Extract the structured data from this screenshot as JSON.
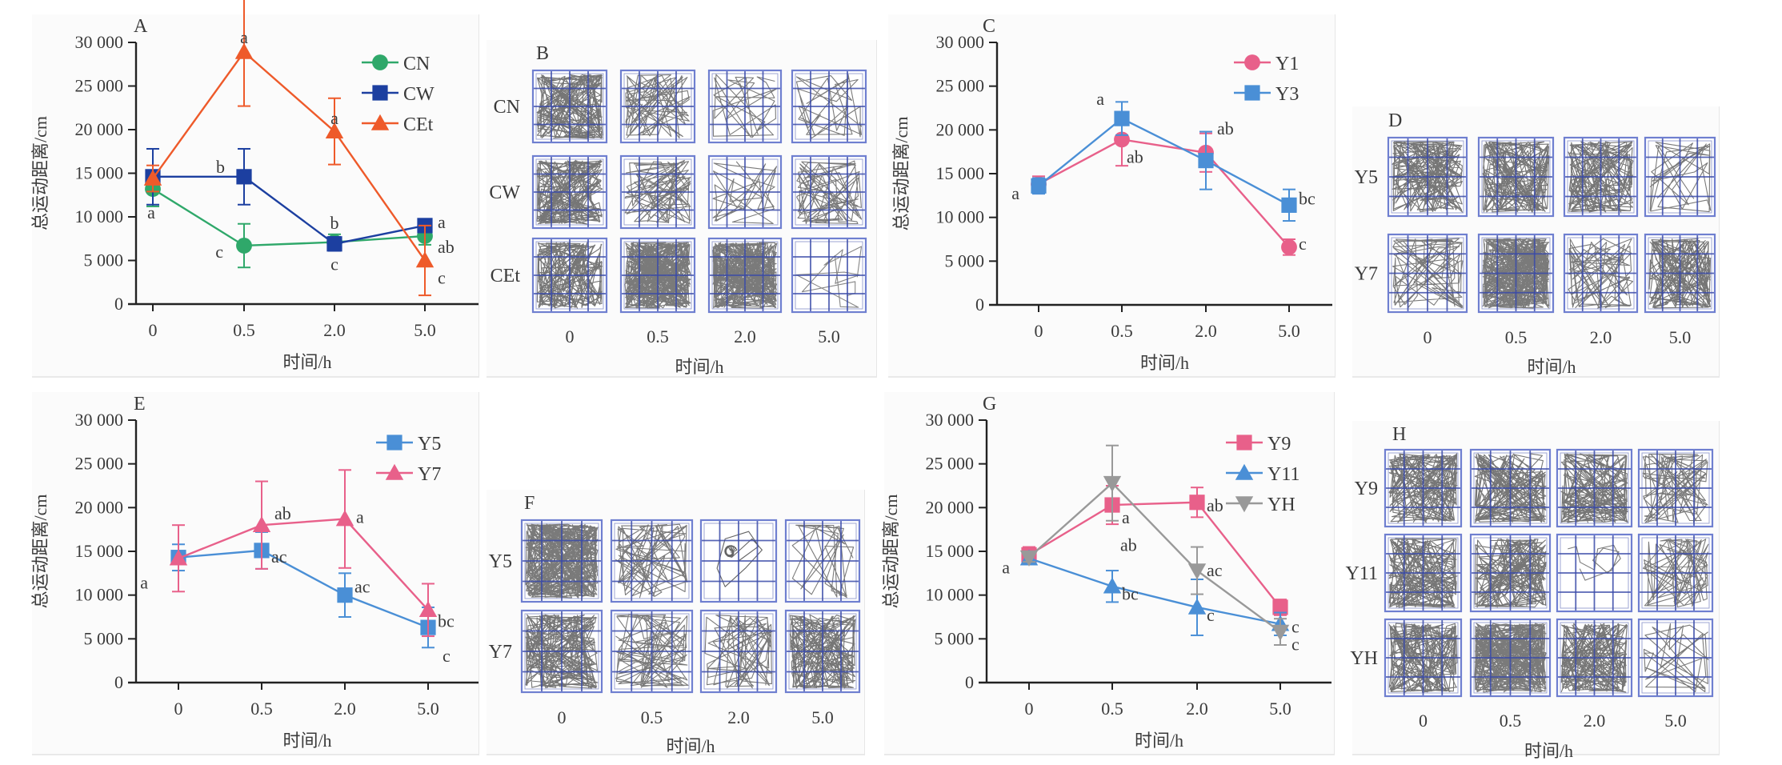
{
  "figure": {
    "ylabel": "总运动距离/cm",
    "xlabel": "时间/h"
  },
  "chart_data": [
    {
      "id": "A",
      "type": "line",
      "panel_label": "A",
      "title": "",
      "xlabel": "时间/h",
      "ylabel": "总运动距离/cm",
      "categories": [
        "0",
        "0.5",
        "2.0",
        "5.0"
      ],
      "yticks": [
        "0",
        "5 000",
        "10 000",
        "15 000",
        "20 000",
        "25 000",
        "30 000"
      ],
      "ylim": [
        0,
        30000
      ],
      "grid": false,
      "legend": "top-right",
      "series": [
        {
          "name": "CN",
          "color": "#2fa86a",
          "marker": "circle",
          "values": [
            13200,
            6700,
            7100,
            7800
          ],
          "errors": [
            2000,
            2500,
            900,
            1000
          ],
          "labels": [
            "a",
            "c",
            "c",
            "ab"
          ]
        },
        {
          "name": "CW",
          "color": "#1c3fa0",
          "marker": "square",
          "values": [
            14600,
            14600,
            6900,
            9000
          ],
          "errors": [
            3200,
            3200,
            800,
            600
          ],
          "labels": [
            "",
            "b",
            "b",
            "a"
          ]
        },
        {
          "name": "CEt",
          "color": "#ee5a2a",
          "marker": "triangle",
          "values": [
            14400,
            28900,
            19800,
            5000
          ],
          "errors": [
            1500,
            6200,
            3800,
            4000
          ],
          "labels": [
            "",
            "a",
            "a",
            "c"
          ]
        }
      ]
    },
    {
      "id": "C",
      "type": "line",
      "panel_label": "C",
      "title": "",
      "xlabel": "时间/h",
      "ylabel": "总运动距离/cm",
      "categories": [
        "0",
        "0.5",
        "2.0",
        "5.0"
      ],
      "yticks": [
        "0",
        "5 000",
        "10 000",
        "15 000",
        "20 000",
        "25 000",
        "30 000"
      ],
      "ylim": [
        0,
        30000
      ],
      "grid": false,
      "legend": "top-right",
      "series": [
        {
          "name": "Y1",
          "color": "#e8608a",
          "marker": "circle",
          "values": [
            13800,
            18900,
            17400,
            6600
          ],
          "errors": [
            900,
            3000,
            2200,
            900
          ],
          "labels": [
            "a",
            "ab",
            "ab",
            "c"
          ]
        },
        {
          "name": "Y3",
          "color": "#4a8fd6",
          "marker": "square",
          "values": [
            13600,
            21300,
            16500,
            11400
          ],
          "errors": [
            900,
            1900,
            3300,
            1800
          ],
          "labels": [
            "",
            "a",
            "",
            "bc"
          ]
        }
      ]
    },
    {
      "id": "E",
      "type": "line",
      "panel_label": "E",
      "title": "",
      "xlabel": "时间/h",
      "ylabel": "总运动距离/cm",
      "categories": [
        "0",
        "0.5",
        "2.0",
        "5.0"
      ],
      "yticks": [
        "0",
        "5 000",
        "10 000",
        "15 000",
        "20 000",
        "25 000",
        "30 000"
      ],
      "ylim": [
        0,
        30000
      ],
      "grid": false,
      "legend": "top-right",
      "series": [
        {
          "name": "Y5",
          "color": "#4a8fd6",
          "marker": "square",
          "values": [
            14300,
            15100,
            10000,
            6300
          ],
          "errors": [
            1500,
            2100,
            2500,
            2300
          ],
          "labels": [
            "a",
            "ac",
            "ac",
            "c"
          ]
        },
        {
          "name": "Y7",
          "color": "#e8608a",
          "marker": "triangle",
          "values": [
            14200,
            18000,
            18700,
            8300
          ],
          "errors": [
            3800,
            5000,
            5600,
            3000
          ],
          "labels": [
            "",
            "ab",
            "a",
            "bc"
          ]
        }
      ]
    },
    {
      "id": "G",
      "type": "line",
      "panel_label": "G",
      "title": "",
      "xlabel": "时间/h",
      "ylabel": "总运动距离/cm",
      "categories": [
        "0",
        "0.5",
        "2.0",
        "5.0"
      ],
      "yticks": [
        "0",
        "5 000",
        "10 000",
        "15 000",
        "20 000",
        "25 000",
        "30 000"
      ],
      "ylim": [
        0,
        30000
      ],
      "grid": false,
      "legend": "top-right",
      "series": [
        {
          "name": "Y9",
          "color": "#e8608a",
          "marker": "square",
          "values": [
            14600,
            20300,
            20600,
            8600
          ],
          "errors": [
            900,
            2200,
            1700,
            900
          ],
          "labels": [
            "a",
            "a",
            "ab",
            ""
          ]
        },
        {
          "name": "Y11",
          "color": "#4a8fd6",
          "marker": "triangle",
          "values": [
            14200,
            11000,
            8600,
            6700
          ],
          "errors": [
            500,
            1800,
            3200,
            1300
          ],
          "labels": [
            "",
            "bc",
            "c",
            "c"
          ]
        },
        {
          "name": "YH",
          "color": "#999999",
          "marker": "triangle-down",
          "values": [
            14300,
            22800,
            12800,
            5800
          ],
          "errors": [
            500,
            4300,
            2700,
            1500
          ],
          "labels": [
            "",
            "ab",
            "ac",
            "c"
          ]
        }
      ]
    }
  ],
  "tracking_panels": [
    {
      "id": "B",
      "panel_label": "B",
      "xlabel": "时间/h",
      "columns": [
        "0",
        "0.5",
        "2.0",
        "5.0"
      ],
      "rows": [
        {
          "label": "CN",
          "activity": [
            "high",
            "medium",
            "low",
            "low"
          ]
        },
        {
          "label": "CW",
          "activity": [
            "high",
            "medium",
            "low",
            "medium"
          ]
        },
        {
          "label": "CEt",
          "activity": [
            "high",
            "very-high",
            "very-high",
            "very-low"
          ]
        }
      ]
    },
    {
      "id": "D",
      "panel_label": "D",
      "xlabel": "时间/h",
      "columns": [
        "0",
        "0.5",
        "2.0",
        "5.0"
      ],
      "rows": [
        {
          "label": "Y5",
          "activity": [
            "high",
            "high",
            "high",
            "low"
          ]
        },
        {
          "label": "Y7",
          "activity": [
            "medium",
            "very-high",
            "medium",
            "high"
          ]
        }
      ]
    },
    {
      "id": "F",
      "panel_label": "F",
      "xlabel": "时间/h",
      "columns": [
        "0",
        "0.5",
        "2.0",
        "5.0"
      ],
      "rows": [
        {
          "label": "Y5",
          "activity": [
            "very-high",
            "medium",
            "spiral",
            "low"
          ]
        },
        {
          "label": "Y7",
          "activity": [
            "high",
            "medium",
            "medium",
            "high"
          ]
        }
      ]
    },
    {
      "id": "H",
      "panel_label": "H",
      "xlabel": "时间/h",
      "columns": [
        "0",
        "0.5",
        "2.0",
        "5.0"
      ],
      "rows": [
        {
          "label": "Y9",
          "activity": [
            "high",
            "high",
            "high",
            "medium"
          ]
        },
        {
          "label": "Y11",
          "activity": [
            "high",
            "high",
            "sparse",
            "medium"
          ]
        },
        {
          "label": "YH",
          "activity": [
            "high",
            "very-high",
            "high",
            "low"
          ]
        }
      ]
    }
  ],
  "colors": {
    "grid_line": "#3a4aa8",
    "grid_border": "#6f7fd0",
    "track": "#222222",
    "axis": "#222222"
  }
}
